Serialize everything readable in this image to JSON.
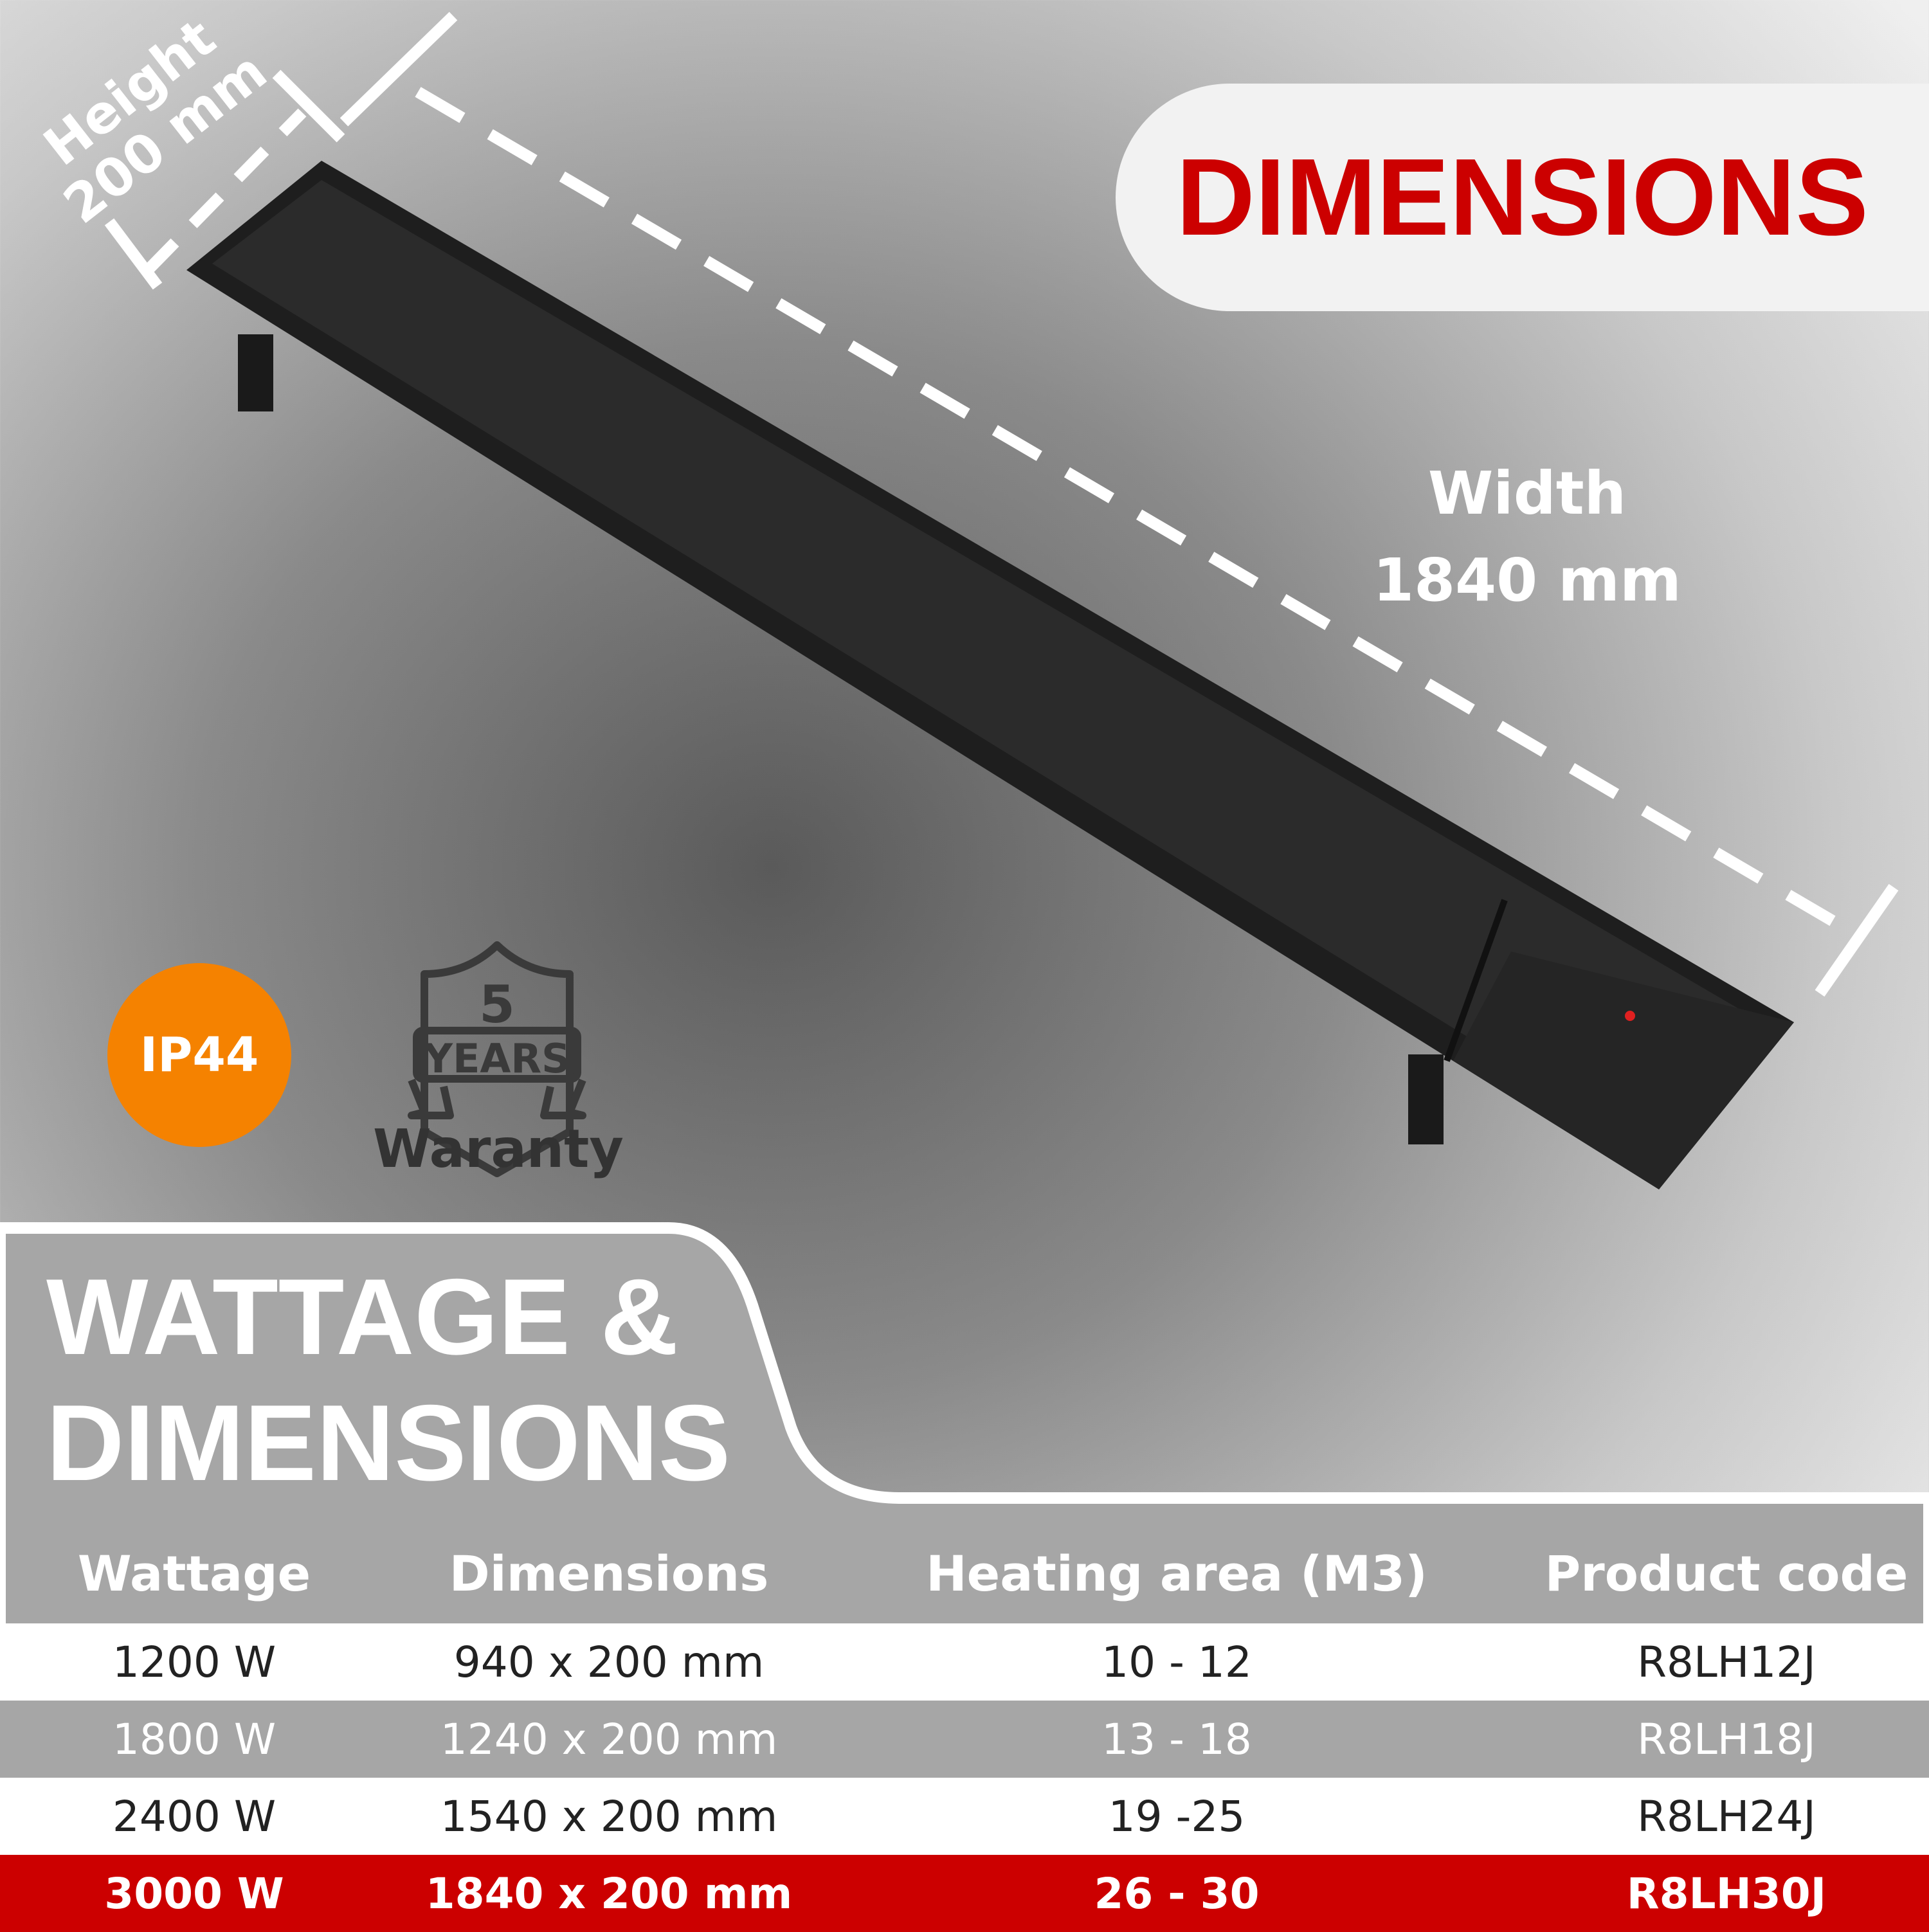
{
  "header": {
    "title": "DIMENSIONS"
  },
  "measurements": {
    "height_label": "Height",
    "height_value": "200 mm",
    "width_label": "Width",
    "width_value": "1840 mm"
  },
  "badges": {
    "ip_rating": "IP44",
    "ip_color": "#f58200",
    "warranty_years": "5",
    "warranty_years_label": "YEARS",
    "warranty_label": "Waranty"
  },
  "panel": {
    "title_line1": "WATTAGE &",
    "title_line2": "DIMENSIONS"
  },
  "table": {
    "headers": [
      "Wattage",
      "Dimensions",
      "Heating area (M3)",
      "Product code"
    ],
    "rows": [
      {
        "wattage": "1200 W",
        "dimensions": "940 x 200 mm",
        "area": "10 - 12",
        "code": "R8LH12J"
      },
      {
        "wattage": "1800 W",
        "dimensions": "1240 x 200 mm",
        "area": "13 - 18",
        "code": "R8LH18J"
      },
      {
        "wattage": "2400 W",
        "dimensions": "1540 x 200 mm",
        "area": "19 -25",
        "code": "R8LH24J"
      },
      {
        "wattage": "3000 W",
        "dimensions": "1840 x 200 mm",
        "area": "26 - 30",
        "code": "R8LH30J",
        "highlighted": true
      }
    ]
  },
  "colors": {
    "accent_red": "#cc0000",
    "panel_gray": "#a6a6a6"
  }
}
